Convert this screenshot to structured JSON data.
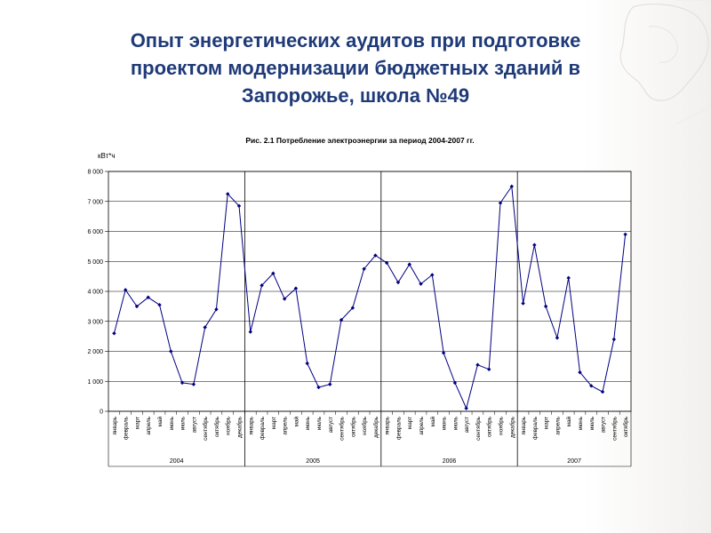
{
  "slide": {
    "title_lines": [
      "Опыт энергетических аудитов при подготовке",
      "проектом модернизации бюджетных зданий в",
      "Запорожье, школа №49"
    ]
  },
  "chart_data": {
    "type": "line",
    "title": "Рис. 2.1 Потребление электроэнергии за период 2004-2007 гг.",
    "ylabel": "кВт*ч",
    "xlabel": "",
    "ylim": [
      0,
      8000
    ],
    "yticks": [
      0,
      1000,
      2000,
      3000,
      4000,
      5000,
      6000,
      7000,
      8000
    ],
    "ytick_labels": [
      "0",
      "1 000",
      "2 000",
      "3 000",
      "4 000",
      "5 000",
      "6 000",
      "7 000",
      "8 000"
    ],
    "grid": true,
    "years": [
      {
        "label": "2004",
        "months": [
          "январь",
          "февраль",
          "март",
          "апрель",
          "май",
          "июнь",
          "июль",
          "август",
          "сентябрь",
          "октябрь",
          "ноябрь",
          "декабрь"
        ]
      },
      {
        "label": "2005",
        "months": [
          "январь",
          "февраль",
          "март",
          "апрель",
          "май",
          "июнь",
          "июль",
          "август",
          "сентябрь",
          "октябрь",
          "ноябрь",
          "декабрь"
        ]
      },
      {
        "label": "2006",
        "months": [
          "январь",
          "февраль",
          "март",
          "апрель",
          "май",
          "июнь",
          "июль",
          "август",
          "сентябрь",
          "октябрь",
          "ноябрь",
          "декабрь"
        ]
      },
      {
        "label": "2007",
        "months": [
          "январь",
          "февраль",
          "март",
          "апрель",
          "май",
          "июнь",
          "июль",
          "август",
          "сентябрь",
          "октябрь"
        ]
      }
    ],
    "values": [
      2600,
      4050,
      3500,
      3800,
      3550,
      2000,
      950,
      900,
      2800,
      3400,
      7250,
      6850,
      2650,
      4200,
      4600,
      3750,
      4100,
      1600,
      800,
      900,
      3050,
      3450,
      4750,
      5200,
      4950,
      4300,
      4900,
      4250,
      4550,
      1950,
      950,
      100,
      1550,
      1400,
      6950,
      7500,
      3600,
      5550,
      3500,
      2450,
      4450,
      1300,
      850,
      650,
      2400,
      5900
    ],
    "line_color": "#000080"
  }
}
